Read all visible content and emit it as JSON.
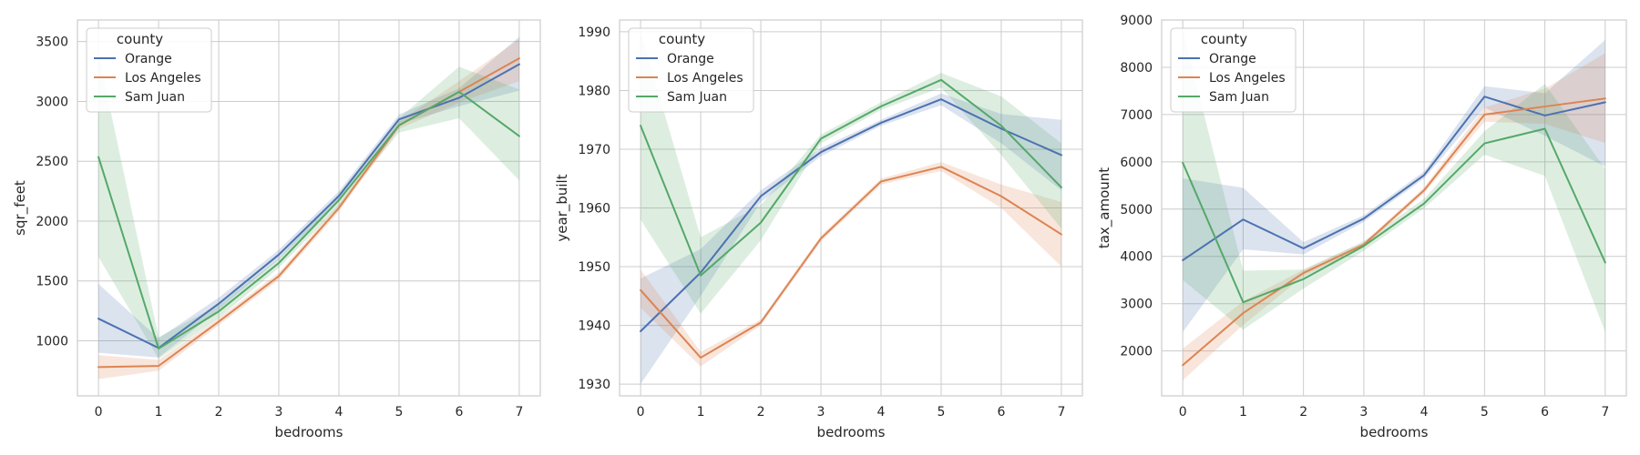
{
  "chart_data": [
    {
      "type": "line",
      "title": "",
      "xlabel": "bedrooms",
      "ylabel": "sqr_feet",
      "x": [
        0,
        1,
        2,
        3,
        4,
        5,
        6,
        7
      ],
      "xlim": [
        -0.35,
        7.35
      ],
      "ylim": [
        540,
        3680
      ],
      "yticks": [
        1000,
        1500,
        2000,
        2500,
        3000,
        3500
      ],
      "grid": true,
      "legend": {
        "title": "county",
        "placement": "top-left"
      },
      "series": [
        {
          "name": "Orange",
          "color": "#4c72b0",
          "values": [
            1185,
            940,
            1310,
            1720,
            2210,
            2850,
            3030,
            3310
          ],
          "ci_low": [
            900,
            860,
            1260,
            1680,
            2170,
            2810,
            2960,
            3090
          ],
          "ci_high": [
            1475,
            1020,
            1360,
            1760,
            2250,
            2890,
            3110,
            3540
          ]
        },
        {
          "name": "Los Angeles",
          "color": "#dd8452",
          "values": [
            780,
            790,
            1160,
            1540,
            2110,
            2800,
            3080,
            3360
          ],
          "ci_low": [
            680,
            750,
            1130,
            1510,
            2080,
            2770,
            2990,
            3170
          ],
          "ci_high": [
            880,
            840,
            1190,
            1570,
            2140,
            2830,
            3170,
            3520
          ]
        },
        {
          "name": "Sam Juan",
          "color": "#55a868",
          "values": [
            2535,
            935,
            1245,
            1650,
            2175,
            2800,
            3080,
            2710
          ],
          "ci_low": [
            1700,
            850,
            1190,
            1610,
            2120,
            2740,
            2860,
            2340
          ],
          "ci_high": [
            3400,
            1030,
            1300,
            1690,
            2230,
            2860,
            3290,
            3100
          ]
        }
      ]
    },
    {
      "type": "line",
      "title": "",
      "xlabel": "bedrooms",
      "ylabel": "year_built",
      "x": [
        0,
        1,
        2,
        3,
        4,
        5,
        6,
        7
      ],
      "xlim": [
        -0.35,
        7.35
      ],
      "ylim": [
        1928,
        1992
      ],
      "yticks": [
        1930,
        1940,
        1950,
        1960,
        1970,
        1980,
        1990
      ],
      "grid": true,
      "legend": {
        "title": "county",
        "placement": "top-left"
      },
      "series": [
        {
          "name": "Orange",
          "color": "#4c72b0",
          "values": [
            1939,
            1949,
            1962,
            1969.5,
            1974.5,
            1978.5,
            1973.5,
            1969
          ],
          "ci_low": [
            1930,
            1945,
            1961,
            1968.8,
            1974,
            1977.5,
            1971,
            1963
          ],
          "ci_high": [
            1948,
            1953,
            1963,
            1970.2,
            1975,
            1979.5,
            1976,
            1975
          ]
        },
        {
          "name": "Los Angeles",
          "color": "#dd8452",
          "values": [
            1946,
            1934.5,
            1940.5,
            1954.8,
            1964.5,
            1967,
            1962,
            1955.5
          ],
          "ci_low": [
            1943,
            1933,
            1940,
            1954.3,
            1964,
            1966.3,
            1960,
            1950
          ],
          "ci_high": [
            1949.5,
            1935.5,
            1941,
            1955.3,
            1965,
            1967.8,
            1964,
            1961
          ]
        },
        {
          "name": "Sam Juan",
          "color": "#55a868",
          "values": [
            1974,
            1948.5,
            1957.5,
            1971.8,
            1977.3,
            1981.8,
            1974,
            1963.5
          ],
          "ci_low": [
            1958,
            1942,
            1954.5,
            1971,
            1976.7,
            1980.5,
            1969,
            1956.5
          ],
          "ci_high": [
            1990,
            1955,
            1960.5,
            1972.5,
            1978,
            1983,
            1979,
            1971
          ]
        }
      ]
    },
    {
      "type": "line",
      "title": "",
      "xlabel": "bedrooms",
      "ylabel": "tax_amount",
      "x": [
        0,
        1,
        2,
        3,
        4,
        5,
        6,
        7
      ],
      "xlim": [
        -0.35,
        7.35
      ],
      "ylim": [
        1050,
        9000
      ],
      "yticks": [
        2000,
        3000,
        4000,
        5000,
        6000,
        7000,
        8000,
        9000
      ],
      "grid": true,
      "legend": {
        "title": "county",
        "placement": "top-left"
      },
      "series": [
        {
          "name": "Orange",
          "color": "#4c72b0",
          "values": [
            3920,
            4780,
            4170,
            4800,
            5720,
            7380,
            6980,
            7260
          ],
          "ci_low": [
            2400,
            4150,
            4040,
            4730,
            5650,
            7150,
            6550,
            5900
          ],
          "ci_high": [
            5650,
            5450,
            4300,
            4870,
            5800,
            7600,
            7450,
            8580
          ]
        },
        {
          "name": "Los Angeles",
          "color": "#dd8452",
          "values": [
            1700,
            2800,
            3650,
            4250,
            5400,
            7000,
            7170,
            7340
          ],
          "ci_low": [
            1380,
            2550,
            3580,
            4200,
            5340,
            6850,
            6800,
            6400
          ],
          "ci_high": [
            2050,
            3050,
            3720,
            4300,
            5460,
            7150,
            7550,
            8300
          ]
        },
        {
          "name": "Sam Juan",
          "color": "#55a868",
          "values": [
            5980,
            3030,
            3520,
            4220,
            5120,
            6390,
            6700,
            3870
          ],
          "ci_low": [
            3500,
            2450,
            3320,
            4120,
            5020,
            6150,
            5700,
            2400
          ],
          "ci_high": [
            8800,
            3700,
            3720,
            4320,
            5220,
            6650,
            7650,
            5850
          ]
        }
      ]
    }
  ]
}
